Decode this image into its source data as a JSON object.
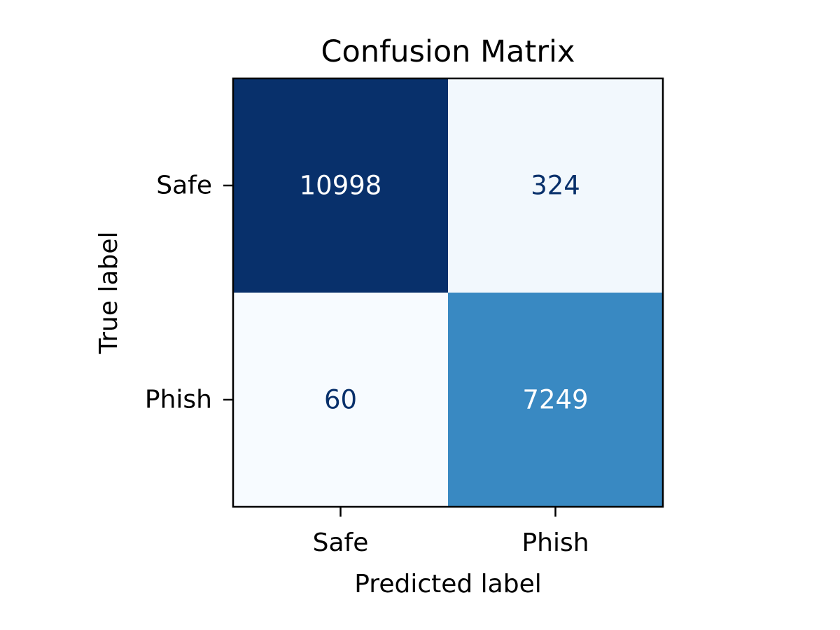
{
  "chart_data": {
    "type": "heatmap",
    "title": "Confusion Matrix",
    "xlabel": "Predicted label",
    "ylabel": "True label",
    "x_categories": [
      "Safe",
      "Phish"
    ],
    "y_categories": [
      "Safe",
      "Phish"
    ],
    "values": [
      [
        10998,
        324
      ],
      [
        60,
        7249
      ]
    ],
    "colormap": "Blues",
    "colors": {
      "text_light": "#ffffff",
      "text_dark": "#08306b",
      "frame": "#000000"
    },
    "grid": false,
    "colorbar": false
  }
}
